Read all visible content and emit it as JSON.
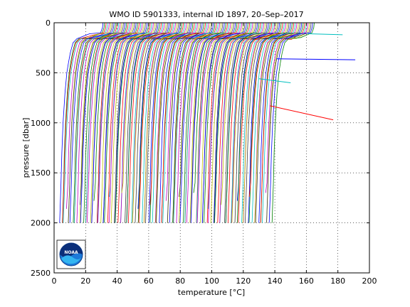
{
  "chart_data": {
    "type": "line",
    "title": "WMO ID 5901333, internal ID 1897, 20–Sep–2017",
    "xlabel": "temperature [°C]",
    "ylabel": "pressure [dbar]",
    "xlim": [
      0,
      200
    ],
    "ylim": [
      0,
      2500
    ],
    "y_reversed": true,
    "grid": true,
    "grid_style": "dotted",
    "xticks": [
      0,
      20,
      40,
      60,
      80,
      100,
      120,
      140,
      160,
      180,
      200
    ],
    "yticks": [
      0,
      500,
      1000,
      1500,
      2000,
      2500
    ],
    "profile_offset_step_c": 1,
    "profile_count": 135,
    "first_profile_deep_temp_c": 3.5,
    "series_colors": [
      "#0000ff",
      "#008000",
      "#ff0000",
      "#00bfbf",
      "#bf00bf",
      "#bfbf00",
      "#404040"
    ],
    "representative_profile": {
      "pressure": [
        0,
        50,
        100,
        130,
        160,
        200,
        300,
        400,
        500,
        700,
        1000,
        1300,
        1600,
        2000
      ],
      "temperature_anomaly": [
        28.5,
        28.2,
        27.0,
        20.0,
        12.0,
        9.5,
        7.8,
        6.6,
        5.6,
        4.4,
        3.2,
        2.4,
        1.9,
        1.0
      ]
    },
    "outlier_segments": [
      {
        "color": "#ff0000",
        "points": [
          [
            137,
            830
          ],
          [
            177,
            970
          ]
        ]
      },
      {
        "color": "#0000ff",
        "points": [
          [
            141,
            360
          ],
          [
            191,
            370
          ]
        ]
      },
      {
        "color": "#00bfbf",
        "points": [
          [
            161,
            110
          ],
          [
            183,
            120
          ]
        ]
      },
      {
        "color": "#00bfbf",
        "points": [
          [
            130,
            560
          ],
          [
            150,
            600
          ]
        ]
      }
    ],
    "logo": {
      "name": "noaa-logo",
      "text": "NOAA"
    }
  }
}
